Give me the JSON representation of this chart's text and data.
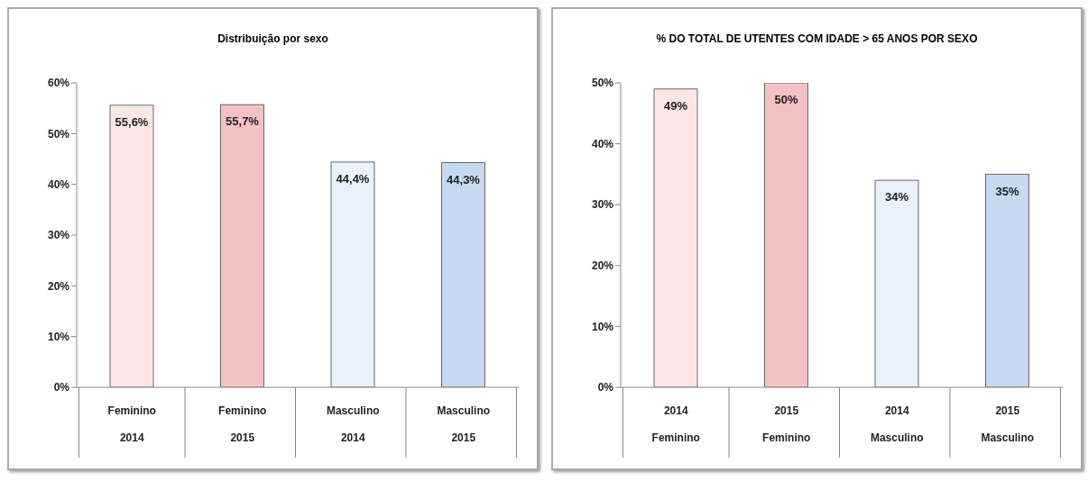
{
  "chart_data": [
    {
      "type": "bar",
      "title": "Distribuição por sexo",
      "categories": [
        "Feminino\n2014",
        "Feminino\n2015",
        "Masculino\n2014",
        "Masculino\n2015"
      ],
      "values": [
        55.6,
        55.7,
        44.4,
        44.3
      ],
      "colors": [
        "#fde6e6",
        "#f4c2c2",
        "#e8f1fc",
        "#c5d9f1"
      ],
      "value_labels": [
        "55,6%",
        "55,7%",
        "44,4%",
        "44,3%"
      ],
      "ylim": [
        0,
        60
      ],
      "yticks": [
        {
          "value": 0,
          "label": "0%"
        },
        {
          "value": 10,
          "label": "10%"
        },
        {
          "value": 20,
          "label": "20%"
        },
        {
          "value": 30,
          "label": "30%"
        },
        {
          "value": 40,
          "label": "40%"
        },
        {
          "value": 50,
          "label": "50%"
        },
        {
          "value": 60,
          "label": "60%"
        }
      ],
      "grid": false,
      "legend": false
    },
    {
      "type": "bar",
      "title": "% DO TOTAL DE UTENTES COM IDADE > 65 ANOS POR SEXO",
      "categories": [
        "2014\nFeminino",
        "2015\nFeminino",
        "2014\nMasculino",
        "2015\nMasculino"
      ],
      "values": [
        49,
        50,
        34,
        35
      ],
      "colors": [
        "#fde6e6",
        "#f4c2c2",
        "#e8f1fc",
        "#c5d9f1"
      ],
      "value_labels": [
        "49%",
        "50%",
        "34%",
        "35%"
      ],
      "ylim": [
        0,
        50
      ],
      "yticks": [
        {
          "value": 0,
          "label": "0%"
        },
        {
          "value": 10,
          "label": "10%"
        },
        {
          "value": 20,
          "label": "20%"
        },
        {
          "value": 30,
          "label": "30%"
        },
        {
          "value": 40,
          "label": "40%"
        },
        {
          "value": 50,
          "label": "50%"
        }
      ],
      "grid": false,
      "legend": false
    }
  ]
}
